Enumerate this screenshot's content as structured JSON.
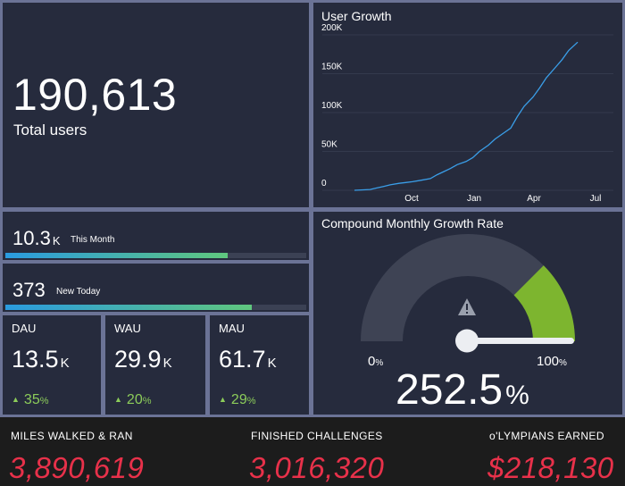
{
  "total_users": {
    "value": "190,613",
    "label": "Total users"
  },
  "user_growth": {
    "title": "User Growth",
    "y_ticks": [
      "200K",
      "150K",
      "100K",
      "50K",
      "0"
    ],
    "x_ticks": [
      "Oct",
      "Jan",
      "Apr",
      "Jul"
    ]
  },
  "chart_data": {
    "type": "line",
    "title": "User Growth",
    "xlabel": "",
    "ylabel": "",
    "ylim": [
      0,
      200000
    ],
    "x_ticks": [
      "Oct",
      "Jan",
      "Apr",
      "Jul"
    ],
    "y_ticks": [
      0,
      50000,
      100000,
      150000,
      200000
    ],
    "grid": true,
    "series": [
      {
        "color": "#3a9ee8",
        "x": [
          0.0,
          0.7,
          1.0,
          1.3,
          1.6,
          2.0,
          2.3,
          2.6,
          3.0,
          3.4,
          3.7,
          4.0,
          4.3,
          4.6,
          5.0,
          5.3,
          5.6,
          6.0,
          6.3,
          6.6,
          7.0,
          7.3,
          7.6,
          8.0,
          8.3,
          8.6,
          9.0,
          9.3,
          9.6,
          10.0
        ],
        "values": [
          0,
          1000,
          3000,
          5000,
          7000,
          9000,
          10000,
          11000,
          13000,
          15000,
          20000,
          24000,
          28000,
          33000,
          37000,
          42000,
          50000,
          58000,
          66000,
          72000,
          80000,
          95000,
          108000,
          120000,
          132000,
          145000,
          158000,
          168000,
          180000,
          190613
        ]
      }
    ]
  },
  "this_month": {
    "value": "10.3",
    "unit": "K",
    "label": "This Month",
    "progress": 0.74
  },
  "new_today": {
    "value": "373",
    "unit": "",
    "label": "New Today",
    "progress": 0.82
  },
  "dau": {
    "title": "DAU",
    "value": "13.5",
    "unit": "K",
    "delta": "35",
    "delta_unit": "%",
    "arrow": "▲"
  },
  "wau": {
    "title": "WAU",
    "value": "29.9",
    "unit": "K",
    "delta": "20",
    "delta_unit": "%",
    "arrow": "▲"
  },
  "mau": {
    "title": "MAU",
    "value": "61.7",
    "unit": "K",
    "delta": "29",
    "delta_unit": "%",
    "arrow": "▲"
  },
  "cmgr": {
    "title": "Compound Monthly Growth Rate",
    "min_label": "0",
    "max_label": "100",
    "pct": "%",
    "value": "252.5",
    "value_unit": "%",
    "gauge_fill": 0.25,
    "gauge_fill_color": "#7db52f",
    "gauge_track_color": "#3e4354",
    "warning_icon": "warning-triangle-icon"
  },
  "bottom": {
    "miles": {
      "label": "MILES WALKED & RAN",
      "value": "3,890,619"
    },
    "challenges": {
      "label": "FINISHED CHALLENGES",
      "value": "3,016,320"
    },
    "olympians": {
      "label": "o'LYMPIANS EARNED",
      "value": "$218,130"
    }
  }
}
